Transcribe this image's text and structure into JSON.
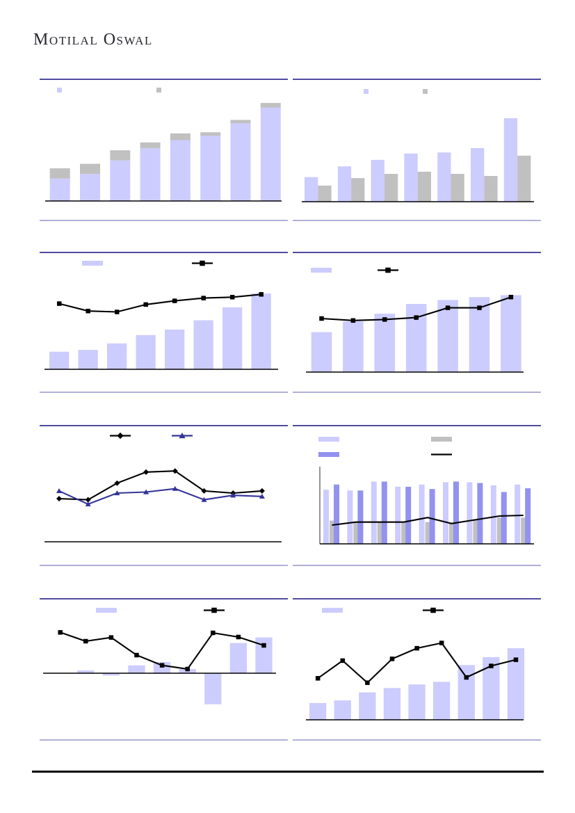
{
  "header": {
    "brand": "Motilal Oswal"
  },
  "colors": {
    "lavender": "#ccccff",
    "gray": "#c0c0c0",
    "periwinkle": "#9292f0",
    "navy": "#333399",
    "black": "#000000",
    "panel_border_top": "#4f4b9e",
    "panel_border_bottom": "#b1afd8",
    "footer_rule": "#000000"
  },
  "chart_data": [
    {
      "name": "top-left-stacked-bar",
      "type": "bar",
      "stacked": true,
      "grid": false,
      "ylim": [
        0,
        105
      ],
      "legend_position": "top",
      "legend": [
        {
          "swatch": "square",
          "color": "#ccccff",
          "label": ""
        },
        {
          "swatch": "square",
          "color": "#c0c0c0",
          "label": ""
        }
      ],
      "series": [
        {
          "name": "lavender-series",
          "kind": "bar",
          "color": "#ccccff",
          "values": [
            20,
            24,
            36,
            47,
            54,
            58,
            69,
            83
          ]
        },
        {
          "name": "gray-series",
          "kind": "bar",
          "color": "#c0c0c0",
          "values": [
            9,
            9,
            9,
            5,
            6,
            3,
            3,
            4
          ]
        }
      ]
    },
    {
      "name": "top-right-grouped-bar",
      "type": "bar",
      "stacked": false,
      "grid": false,
      "ylim": [
        0,
        110
      ],
      "legend_position": "top",
      "legend": [
        {
          "swatch": "square",
          "color": "#ccccff",
          "label": ""
        },
        {
          "swatch": "square",
          "color": "#c0c0c0",
          "label": ""
        }
      ],
      "series": [
        {
          "name": "lavender-series",
          "kind": "bar",
          "color": "#ccccff",
          "values": [
            23,
            33,
            39,
            45,
            46,
            50,
            78
          ]
        },
        {
          "name": "gray-series",
          "kind": "bar",
          "color": "#c0c0c0",
          "values": [
            15,
            22,
            26,
            28,
            26,
            24,
            43
          ]
        }
      ]
    },
    {
      "name": "row2-left-bar-line",
      "type": "bar",
      "stacked": false,
      "grid": false,
      "ylim": [
        0,
        125
      ],
      "legend_position": "top",
      "legend": [
        {
          "swatch": "bar",
          "color": "#ccccff",
          "label": ""
        },
        {
          "swatch": "line",
          "color": "#000000",
          "marker": "square",
          "label": ""
        }
      ],
      "series": [
        {
          "name": "lavender-bars",
          "kind": "bar",
          "color": "#ccccff",
          "values": [
            19,
            21,
            28,
            37,
            43,
            53,
            67,
            82
          ]
        },
        {
          "name": "black-line",
          "kind": "line",
          "color": "#000000",
          "marker": "square",
          "values": [
            71,
            63,
            62,
            70,
            74,
            77,
            78,
            81
          ]
        }
      ]
    },
    {
      "name": "row2-right-bar-line",
      "type": "bar",
      "stacked": false,
      "grid": false,
      "ylim": [
        0,
        120
      ],
      "legend_position": "top",
      "legend": [
        {
          "swatch": "bar",
          "color": "#ccccff",
          "label": ""
        },
        {
          "swatch": "line",
          "color": "#000000",
          "marker": "square",
          "label": ""
        }
      ],
      "series": [
        {
          "name": "lavender-bars",
          "kind": "bar",
          "color": "#ccccff",
          "values": [
            41,
            52,
            60,
            70,
            74,
            77,
            79
          ]
        },
        {
          "name": "black-line",
          "kind": "line",
          "color": "#000000",
          "marker": "square",
          "values": [
            55,
            53,
            54,
            56,
            66,
            66,
            77
          ]
        }
      ]
    },
    {
      "name": "row3-left-dual-line",
      "type": "line",
      "grid": false,
      "ylim": [
        0,
        100
      ],
      "legend_position": "top",
      "legend": [
        {
          "swatch": "line",
          "color": "#000000",
          "marker": "diamond",
          "label": ""
        },
        {
          "swatch": "line",
          "color": "#333399",
          "marker": "triangle",
          "label": ""
        }
      ],
      "series": [
        {
          "name": "black-diamond-line",
          "kind": "line",
          "color": "#000000",
          "marker": "diamond",
          "values": [
            39,
            38,
            53,
            63,
            64,
            46,
            44,
            46
          ]
        },
        {
          "name": "navy-triangle-line",
          "kind": "line",
          "color": "#333399",
          "marker": "triangle",
          "values": [
            46,
            34,
            44,
            45,
            48,
            38,
            42,
            41
          ]
        }
      ]
    },
    {
      "name": "row3-right-multibar-line",
      "type": "bar",
      "stacked": false,
      "grid": false,
      "ylim": [
        0,
        103
      ],
      "has_y_axis_line": true,
      "legend_position": "top",
      "legend": [
        {
          "swatch": "bar",
          "color": "#ccccff",
          "label": ""
        },
        {
          "swatch": "bar",
          "color": "#c0c0c0",
          "label": ""
        },
        {
          "swatch": "bar",
          "color": "#9292f0",
          "label": ""
        },
        {
          "swatch": "line",
          "color": "#000000",
          "marker": "none",
          "label": ""
        }
      ],
      "series": [
        {
          "name": "light-lavender-bars",
          "kind": "bar",
          "color": "#ccccff",
          "values": [
            72,
            71,
            83,
            76,
            79,
            82,
            82,
            78,
            79
          ]
        },
        {
          "name": "gray-bars",
          "kind": "bar",
          "color": "#c0c0c0",
          "values": [
            31,
            29,
            30,
            30,
            29,
            27,
            33,
            35,
            35
          ]
        },
        {
          "name": "periwinkle-bars",
          "kind": "bar",
          "color": "#9292f0",
          "values": [
            79,
            71,
            83,
            76,
            73,
            83,
            81,
            69,
            74
          ]
        },
        {
          "name": "black-line",
          "kind": "line",
          "color": "#000000",
          "marker": "none",
          "values": [
            25,
            29,
            29,
            29,
            35,
            27,
            32,
            37,
            38
          ]
        }
      ]
    },
    {
      "name": "row4-left-bar-line-negatives",
      "type": "bar",
      "stacked": false,
      "grid": false,
      "ylim": [
        -142,
        159
      ],
      "legend_position": "top",
      "legend": [
        {
          "swatch": "bar",
          "color": "#ccccff",
          "label": ""
        },
        {
          "swatch": "line",
          "color": "#000000",
          "marker": "square",
          "label": ""
        }
      ],
      "series": [
        {
          "name": "lavender-bars",
          "kind": "bar",
          "color": "#ccccff",
          "values": [
            0,
            6,
            -5,
            17,
            24,
            9,
            -67,
            65,
            77
          ]
        },
        {
          "name": "black-line",
          "kind": "line",
          "color": "#000000",
          "marker": "square",
          "values": [
            88,
            69,
            77,
            39,
            17,
            9,
            87,
            78,
            60
          ]
        }
      ]
    },
    {
      "name": "row4-right-bar-line",
      "type": "bar",
      "stacked": false,
      "grid": false,
      "ylim": [
        0,
        135
      ],
      "legend_position": "top",
      "legend": [
        {
          "swatch": "bar",
          "color": "#ccccff",
          "label": ""
        },
        {
          "swatch": "line",
          "color": "#000000",
          "marker": "square",
          "label": ""
        }
      ],
      "series": [
        {
          "name": "lavender-bars",
          "kind": "bar",
          "color": "#ccccff",
          "values": [
            19,
            22,
            31,
            36,
            40,
            43,
            62,
            71,
            81
          ]
        },
        {
          "name": "black-line",
          "kind": "line",
          "color": "#000000",
          "marker": "square",
          "values": [
            47,
            67,
            42,
            69,
            81,
            87,
            48,
            61,
            68
          ]
        }
      ]
    }
  ]
}
